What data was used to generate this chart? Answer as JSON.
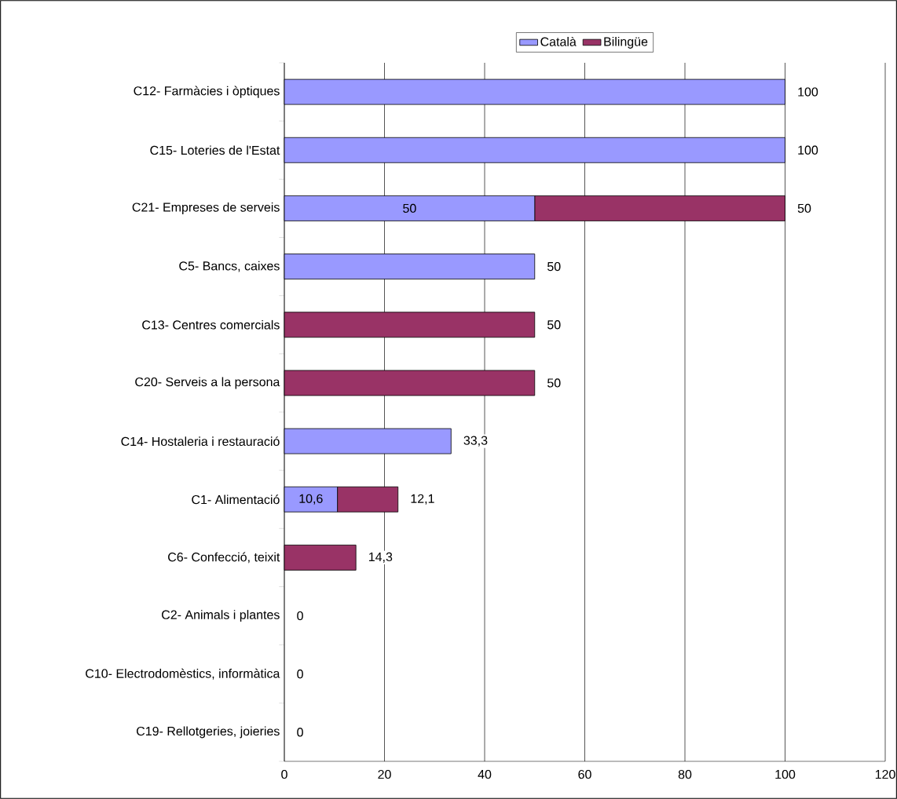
{
  "chart_data": {
    "type": "bar",
    "orientation": "horizontal",
    "stacked": true,
    "categories": [
      "C12- Farmàcies i òptiques",
      "C15- Loteries de l'Estat",
      "C21- Empreses de serveis",
      "C5- Bancs, caixes",
      "C13- Centres comercials",
      "C20- Serveis a la persona",
      "C14- Hostaleria i restauració",
      "C1- Alimentació",
      "C6- Confecció, teixit",
      "C2- Animals i plantes",
      "C10- Electrodomèstics, informàtica",
      "C19- Rellotgeries, joieries"
    ],
    "series": [
      {
        "name": "Català",
        "color": "#9999ff",
        "values": [
          100,
          100,
          50,
          50,
          0,
          0,
          33.3,
          10.6,
          0,
          0,
          0,
          0
        ],
        "value_labels": [
          "100",
          "100",
          "50",
          "50",
          null,
          null,
          "33,3",
          "10,6",
          null,
          "0",
          "0",
          "0"
        ]
      },
      {
        "name": "Bilingüe",
        "color": "#993366",
        "values": [
          0,
          0,
          50,
          0,
          50,
          50,
          0,
          12.1,
          14.3,
          0,
          0,
          0
        ],
        "value_labels": [
          null,
          null,
          "50",
          null,
          "50",
          "50",
          null,
          "12,1",
          "14,3",
          null,
          null,
          null
        ]
      }
    ],
    "xlim": [
      0,
      120
    ],
    "xticks": [
      0,
      20,
      40,
      60,
      80,
      100,
      120
    ],
    "grid": "x",
    "legend": "top"
  }
}
